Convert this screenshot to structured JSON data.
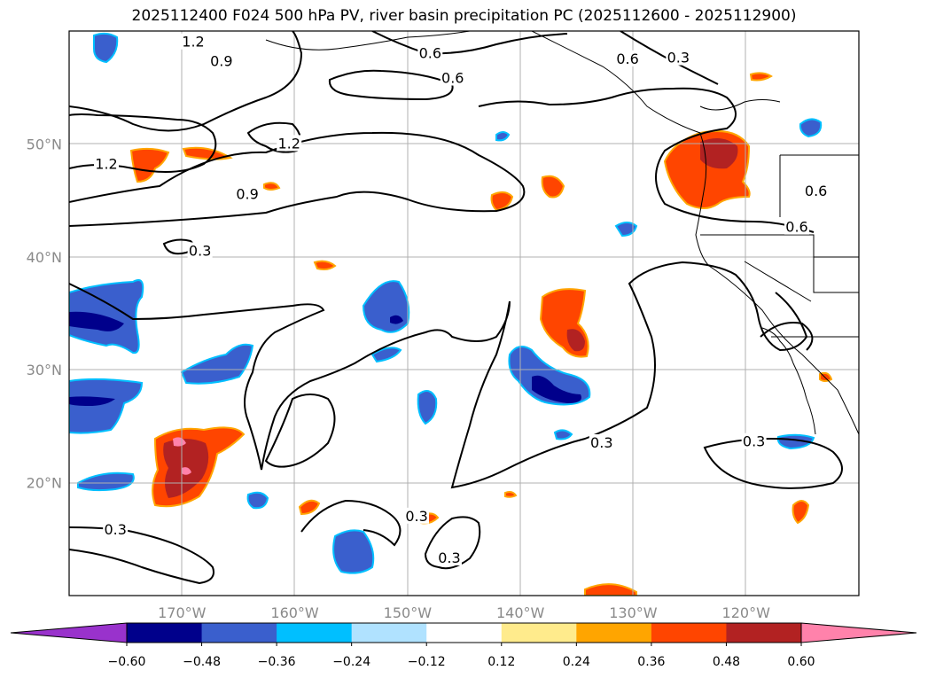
{
  "title": "2025112400 F024 500 hPa PV, river basin precipitation PC (2025112600 - 2025112900)",
  "map": {
    "lon_range": [
      -180,
      -110
    ],
    "lat_range": [
      10,
      60
    ],
    "lon_ticks": [
      {
        "lon": -170,
        "label": "170°W"
      },
      {
        "lon": -160,
        "label": "160°W"
      },
      {
        "lon": -150,
        "label": "150°W"
      },
      {
        "lon": -140,
        "label": "140°W"
      },
      {
        "lon": -130,
        "label": "130°W"
      },
      {
        "lon": -120,
        "label": "120°W"
      }
    ],
    "lat_ticks": [
      {
        "lat": 20,
        "label": "20°N"
      },
      {
        "lat": 30,
        "label": "30°N"
      },
      {
        "lat": 40,
        "label": "40°N"
      },
      {
        "lat": 50,
        "label": "50°N"
      }
    ],
    "contour_labels": [
      {
        "text": "1.2",
        "lon": -169,
        "lat": 59
      },
      {
        "text": "0.9",
        "lon": -166.5,
        "lat": 57.3
      },
      {
        "text": "0.6",
        "lon": -148,
        "lat": 58
      },
      {
        "text": "0.6",
        "lon": -146,
        "lat": 55.8
      },
      {
        "text": "0.6",
        "lon": -130.5,
        "lat": 57.5
      },
      {
        "text": "0.3",
        "lon": -126,
        "lat": 57.6
      },
      {
        "text": "1.2",
        "lon": -160.5,
        "lat": 50
      },
      {
        "text": "1.2",
        "lon": -176.7,
        "lat": 48.2
      },
      {
        "text": "0.9",
        "lon": -164.2,
        "lat": 45.5
      },
      {
        "text": "0.6",
        "lon": -115.5,
        "lat": 42.6
      },
      {
        "text": "0.6",
        "lon": -113.8,
        "lat": 45.8
      },
      {
        "text": "0.3",
        "lon": -168.4,
        "lat": 40.5
      },
      {
        "text": "0.3",
        "lon": -132.8,
        "lat": 23.5
      },
      {
        "text": "0.3",
        "lon": -119.3,
        "lat": 23.6
      },
      {
        "text": "0.3",
        "lon": -175.9,
        "lat": 15.8
      },
      {
        "text": "0.3",
        "lon": -149.2,
        "lat": 17
      },
      {
        "text": "0.3",
        "lon": -146.3,
        "lat": 13.3
      }
    ]
  },
  "colorbar": {
    "levels": [
      -0.6,
      -0.48,
      -0.36,
      -0.24,
      -0.12,
      0.12,
      0.24,
      0.36,
      0.48,
      0.6
    ],
    "labels": [
      "−0.60",
      "−0.48",
      "−0.36",
      "−0.24",
      "−0.12",
      "0.12",
      "0.24",
      "0.36",
      "0.48",
      "0.60"
    ],
    "colors": {
      "under": "#9932cc",
      "bins": [
        "#00008b",
        "#3a5fcd",
        "#00bfff",
        "#b0e2ff",
        "#ffffff",
        "#ffeb8c",
        "#ffa500",
        "#ff4500",
        "#b22222"
      ],
      "over": "#ff82ab"
    }
  }
}
